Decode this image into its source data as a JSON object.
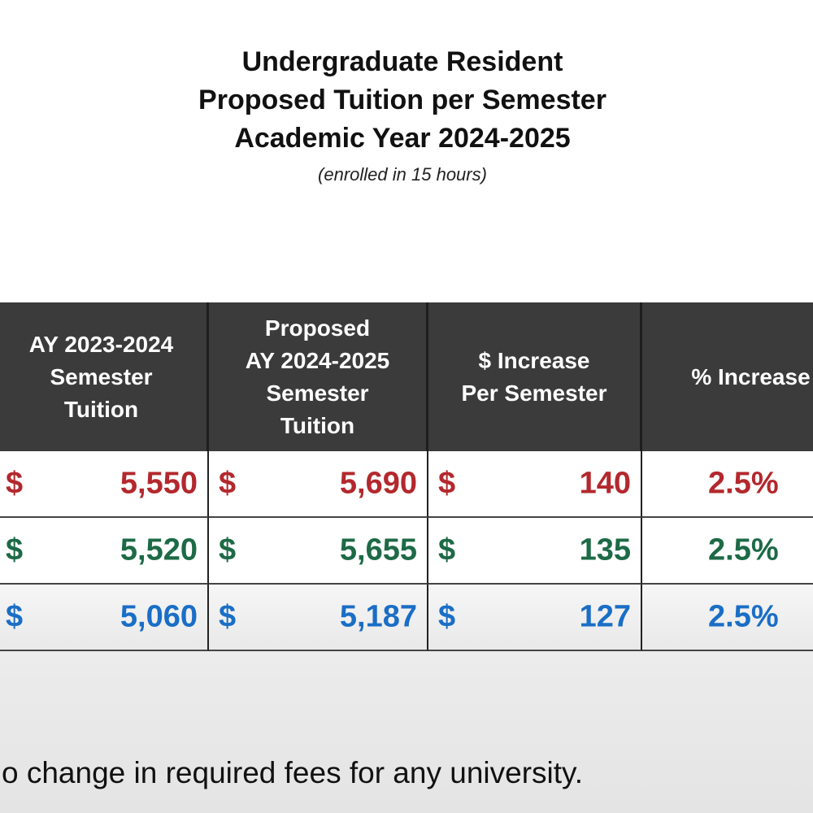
{
  "title": [
    "Undergraduate Resident",
    "Proposed Tuition per Semester",
    "Academic Year 2024-2025"
  ],
  "subtitle": "(enrolled in 15 hours)",
  "table": {
    "header": [
      [
        "AY 2023-2024",
        "Semester",
        "Tuition"
      ],
      [
        "Proposed",
        "AY 2024-2025",
        "Semester",
        "Tuition"
      ],
      [
        "$ Increase",
        "Per Semester"
      ],
      [
        "% Increase"
      ]
    ],
    "rows": [
      [
        {
          "currency": "$",
          "amount": "5,550"
        },
        {
          "currency": "$",
          "amount": "5,690"
        },
        {
          "currency": "$",
          "amount": "140"
        },
        "2.5%"
      ],
      [
        {
          "currency": "$",
          "amount": "5,520"
        },
        {
          "currency": "$",
          "amount": "5,655"
        },
        {
          "currency": "$",
          "amount": "135"
        },
        "2.5%"
      ],
      [
        {
          "currency": "$",
          "amount": "5,060"
        },
        {
          "currency": "$",
          "amount": "5,187"
        },
        {
          "currency": "$",
          "amount": "127"
        },
        "2.5%"
      ]
    ]
  },
  "footnote": "o change in required fees for any university."
}
